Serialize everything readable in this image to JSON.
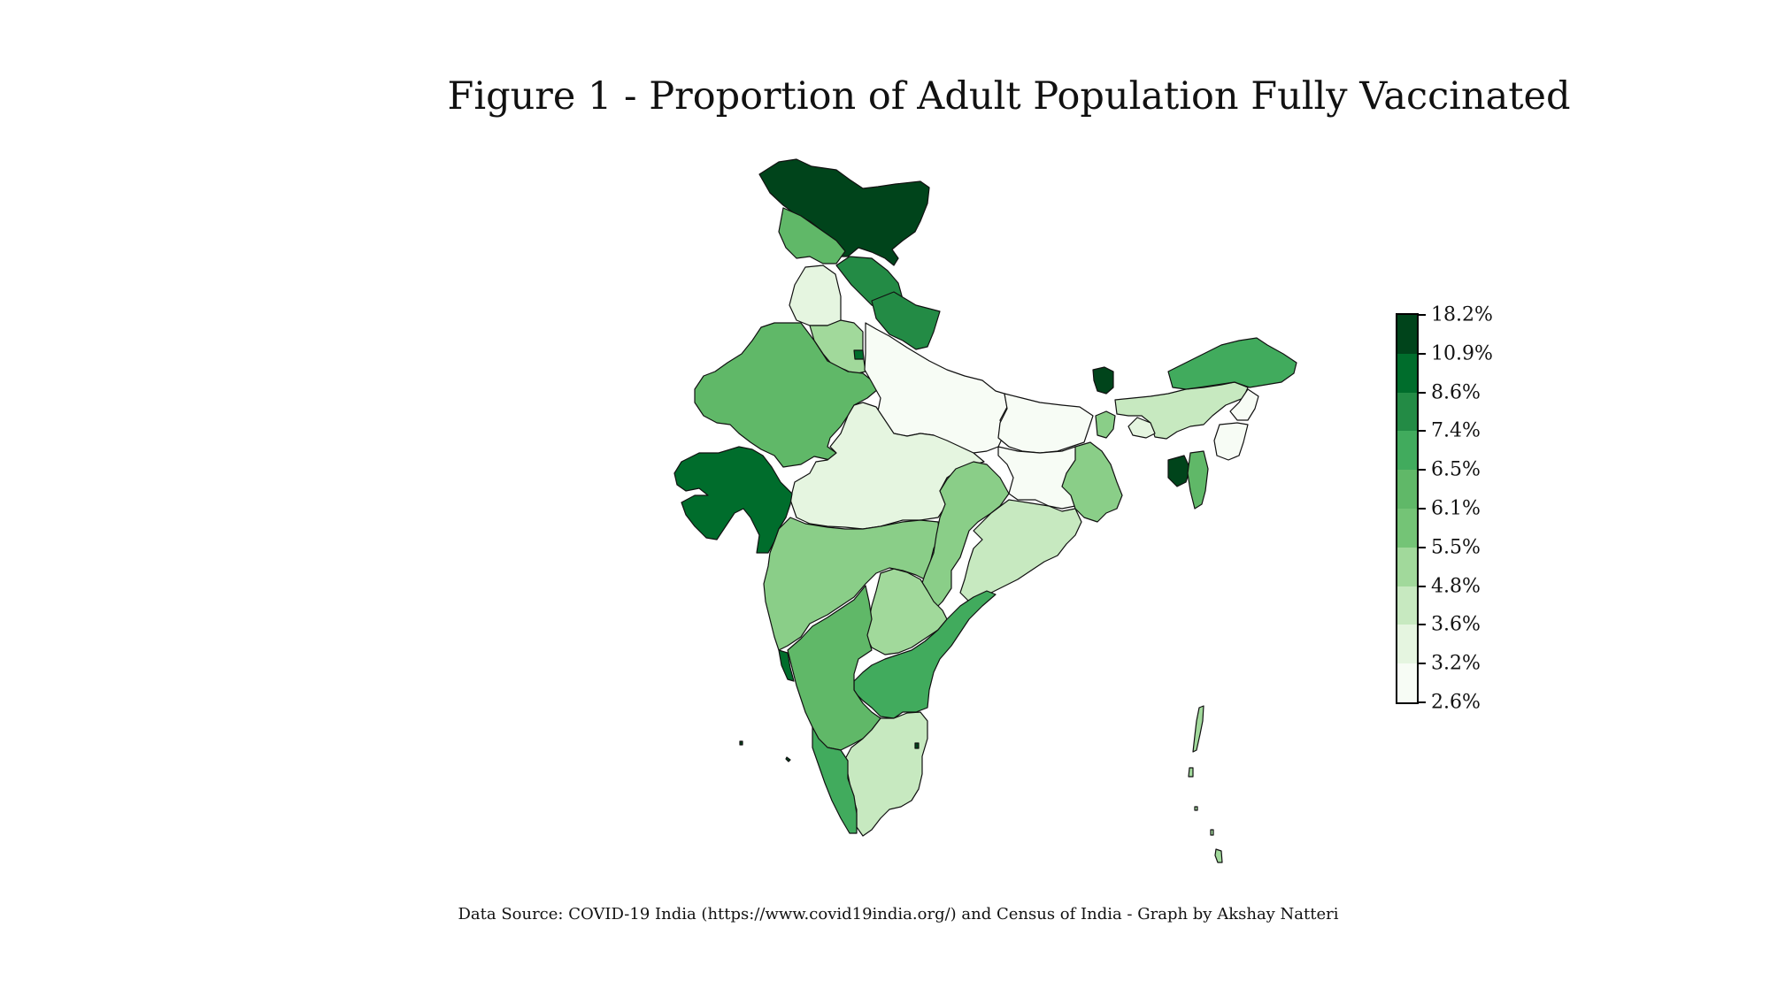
{
  "title": "Figure 1 - Proportion of Adult Population Fully Vaccinated",
  "footer": "Data Source:  COVID-19 India (https://www.covid19india.org/) and Census of India - Graph by Akshay Natteri",
  "legend": {
    "labels": [
      "18.2%",
      "10.9%",
      "8.6%",
      "7.4%",
      "6.5%",
      "6.1%",
      "5.5%",
      "4.8%",
      "3.6%",
      "3.2%",
      "2.6%"
    ],
    "colors": [
      "#00441b",
      "#006d2c",
      "#238b45",
      "#41ab5d",
      "#60b868",
      "#74c476",
      "#a1d99b",
      "#c7e9c0",
      "#e5f5e0",
      "#f7fcf5"
    ]
  },
  "palette": {
    "c1": "#f7fcf5",
    "c2": "#e5f5e0",
    "c3": "#c7e9c0",
    "c4": "#a1d99b",
    "c5": "#8ace88",
    "c6": "#60b868",
    "c7": "#41ab5d",
    "c8": "#238b45",
    "c9": "#006d2c",
    "c10": "#00441b"
  }
}
